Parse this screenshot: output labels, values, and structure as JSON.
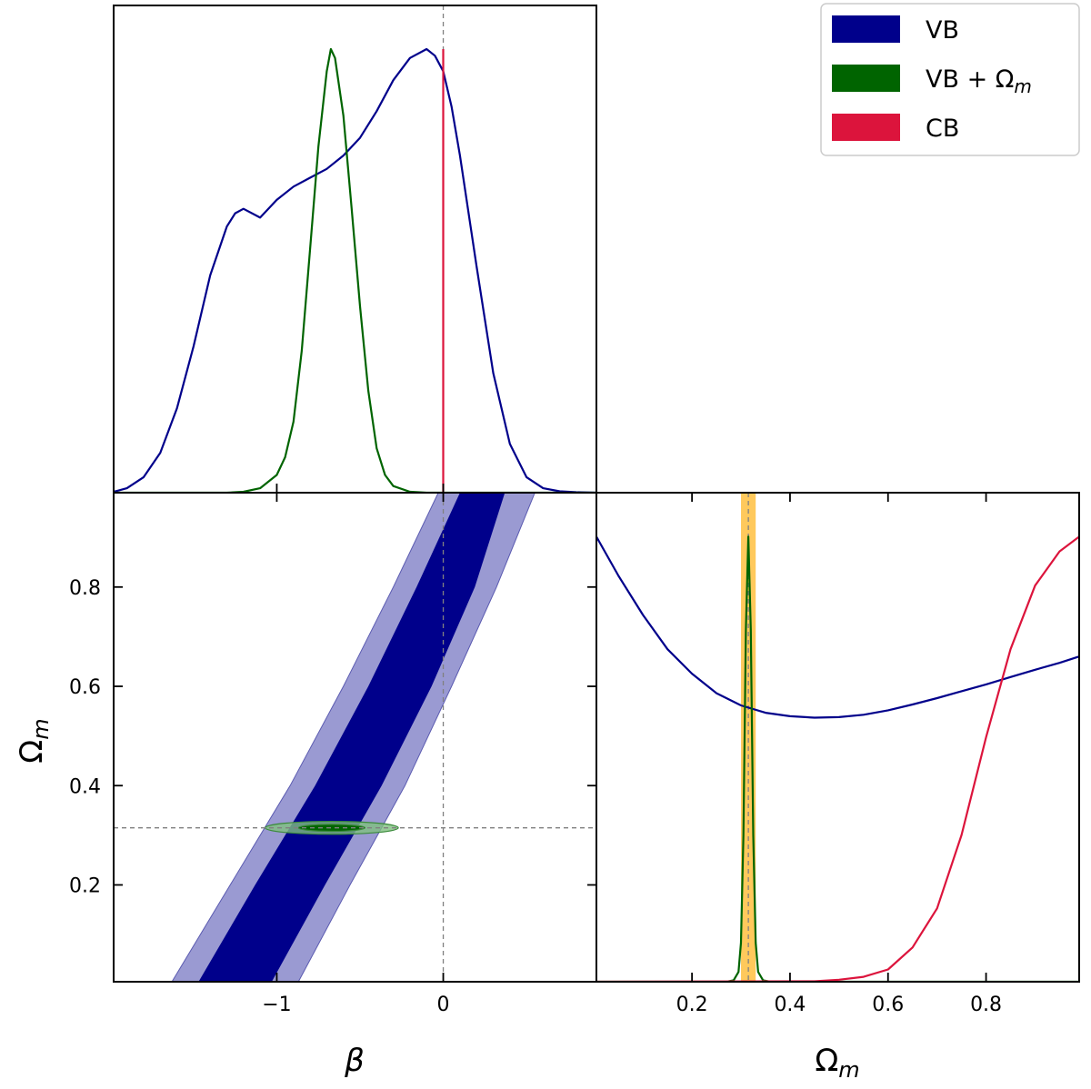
{
  "colors": {
    "VB": "#00008b",
    "VB_light": "#9a9ad2",
    "VB_plus_Om": "#006400",
    "VB_plus_Om_light": "#7fbf7f",
    "CB": "#dc143c",
    "CB_band": "#ffc040",
    "reference_line": "#808080"
  },
  "legend": {
    "position": "top-right",
    "entries": [
      {
        "label": "VB",
        "color": "#00008b"
      },
      {
        "label_main": "VB + Ω",
        "label_sub": "m",
        "color": "#006400"
      },
      {
        "label": "CB",
        "color": "#dc143c"
      }
    ]
  },
  "chart_data": [
    {
      "type": "line",
      "panel": "marginal-beta",
      "xlabel": "",
      "ylabel": "",
      "xlim": [
        -1.98,
        0.92
      ],
      "ylim": [
        0,
        1.0
      ],
      "reference_x": 0,
      "series": [
        {
          "name": "VB",
          "color": "#00008b",
          "x": [
            -1.98,
            -1.9,
            -1.8,
            -1.7,
            -1.6,
            -1.5,
            -1.4,
            -1.3,
            -1.25,
            -1.2,
            -1.1,
            -1.0,
            -0.9,
            -0.8,
            -0.7,
            -0.6,
            -0.5,
            -0.4,
            -0.3,
            -0.2,
            -0.1,
            -0.05,
            0.0,
            0.05,
            0.1,
            0.2,
            0.3,
            0.4,
            0.5,
            0.6,
            0.7,
            0.8,
            0.92
          ],
          "y": [
            0.002,
            0.01,
            0.035,
            0.09,
            0.19,
            0.33,
            0.49,
            0.6,
            0.63,
            0.64,
            0.62,
            0.66,
            0.69,
            0.71,
            0.73,
            0.76,
            0.8,
            0.86,
            0.93,
            0.98,
            1.0,
            0.985,
            0.95,
            0.87,
            0.76,
            0.51,
            0.27,
            0.11,
            0.035,
            0.01,
            0.003,
            0.001,
            0.0
          ]
        },
        {
          "name": "VB + Ωm",
          "color": "#006400",
          "x": [
            -1.98,
            -1.3,
            -1.2,
            -1.1,
            -1.0,
            -0.95,
            -0.9,
            -0.85,
            -0.8,
            -0.75,
            -0.7,
            -0.675,
            -0.65,
            -0.6,
            -0.55,
            -0.5,
            -0.45,
            -0.4,
            -0.35,
            -0.3,
            -0.2,
            -0.1,
            0.92
          ],
          "y": [
            0.0,
            0.0,
            0.002,
            0.01,
            0.04,
            0.08,
            0.16,
            0.32,
            0.55,
            0.78,
            0.95,
            1.0,
            0.98,
            0.85,
            0.64,
            0.42,
            0.23,
            0.1,
            0.04,
            0.015,
            0.002,
            0.0,
            0.0
          ]
        },
        {
          "name": "CB",
          "color": "#dc143c",
          "x": [
            0,
            0
          ],
          "y": [
            0,
            1.0
          ]
        }
      ]
    },
    {
      "type": "area",
      "panel": "beta-vs-Om",
      "xlabel": "β",
      "ylabel": "Ω",
      "ylabel_sub": "m",
      "xlim": [
        -1.98,
        0.92
      ],
      "ylim": [
        0.005,
        0.99
      ],
      "xticks": [
        -1,
        0
      ],
      "xtick_labels": [
        "−1",
        "0"
      ],
      "yticks": [
        0.2,
        0.4,
        0.6,
        0.8
      ],
      "ytick_labels": [
        "0.2",
        "0.4",
        "0.6",
        "0.8"
      ],
      "reference_x": 0,
      "reference_y": 0.315,
      "series": [
        {
          "name": "VB 95% contour",
          "color": "#9a9ad2",
          "y": [
            0.005,
            0.2,
            0.4,
            0.6,
            0.8,
            0.99
          ],
          "x_left": [
            -1.63,
            -1.28,
            -0.92,
            -0.6,
            -0.3,
            -0.03
          ],
          "x_right": [
            -0.87,
            -0.56,
            -0.23,
            0.05,
            0.32,
            0.55
          ]
        },
        {
          "name": "VB 68% contour",
          "color": "#00008b",
          "y": [
            0.005,
            0.2,
            0.4,
            0.6,
            0.8,
            0.99
          ],
          "x_left": [
            -1.47,
            -1.13,
            -0.77,
            -0.45,
            -0.16,
            0.1
          ],
          "x_right": [
            -1.03,
            -0.71,
            -0.37,
            -0.07,
            0.19,
            0.37
          ]
        },
        {
          "name": "VB + Ωm 95% contour",
          "color": "#7fbf7f",
          "center": [
            -0.67,
            0.315
          ],
          "half_widths": [
            0.4,
            0.013
          ]
        },
        {
          "name": "VB + Ωm 68% contour",
          "color": "#006400",
          "center": [
            -0.67,
            0.315
          ],
          "half_widths": [
            0.2,
            0.007
          ]
        }
      ]
    },
    {
      "type": "line",
      "panel": "marginal-Om",
      "xlabel": "Ω",
      "xlabel_sub": "m",
      "ylabel": "",
      "xlim": [
        0.005,
        0.99
      ],
      "ylim": [
        0,
        1.0
      ],
      "xticks": [
        0.2,
        0.4,
        0.6,
        0.8
      ],
      "xtick_labels": [
        "0.2",
        "0.4",
        "0.6",
        "0.8"
      ],
      "reference_x": 0.315,
      "band": {
        "x": [
          0.3,
          0.33
        ],
        "color": "#ffc040"
      },
      "series": [
        {
          "name": "VB",
          "color": "#00008b",
          "x": [
            0.005,
            0.05,
            0.1,
            0.15,
            0.2,
            0.25,
            0.3,
            0.35,
            0.4,
            0.45,
            0.5,
            0.55,
            0.6,
            0.65,
            0.7,
            0.75,
            0.8,
            0.85,
            0.9,
            0.95,
            0.99
          ],
          "y": [
            0.91,
            0.83,
            0.75,
            0.68,
            0.63,
            0.59,
            0.565,
            0.55,
            0.543,
            0.54,
            0.541,
            0.546,
            0.555,
            0.567,
            0.58,
            0.594,
            0.608,
            0.623,
            0.638,
            0.652,
            0.665
          ]
        },
        {
          "name": "VB + Ωm",
          "color": "#006400",
          "x": [
            0.005,
            0.27,
            0.285,
            0.295,
            0.3,
            0.305,
            0.31,
            0.315,
            0.32,
            0.325,
            0.33,
            0.335,
            0.345,
            0.36,
            0.99
          ],
          "y": [
            0.0,
            0.0,
            0.003,
            0.02,
            0.08,
            0.3,
            0.72,
            0.91,
            0.72,
            0.3,
            0.08,
            0.02,
            0.003,
            0.0,
            0.0
          ]
        },
        {
          "name": "CB",
          "color": "#dc143c",
          "x": [
            0.005,
            0.45,
            0.5,
            0.55,
            0.6,
            0.65,
            0.7,
            0.75,
            0.8,
            0.85,
            0.9,
            0.95,
            0.99
          ],
          "y": [
            0.0,
            0.001,
            0.004,
            0.01,
            0.025,
            0.07,
            0.15,
            0.3,
            0.5,
            0.68,
            0.81,
            0.88,
            0.91
          ]
        }
      ]
    }
  ]
}
